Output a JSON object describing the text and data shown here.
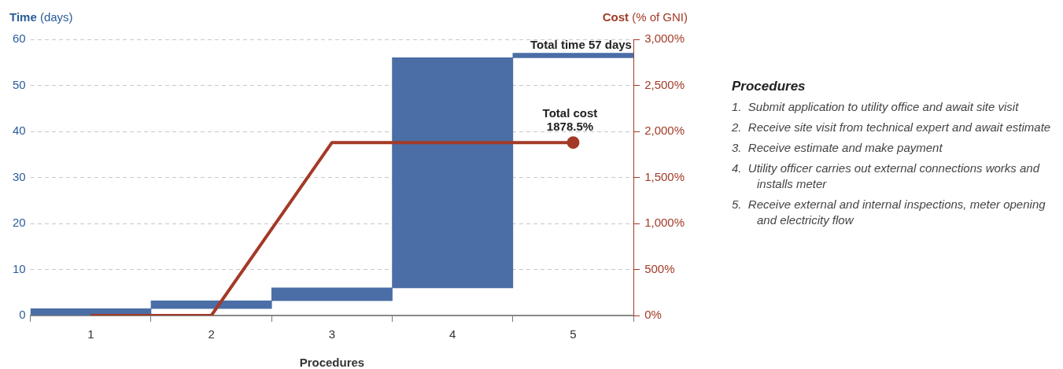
{
  "chart_data": [
    {
      "type": "bar",
      "xlabel": "Procedures",
      "ylabel": "Time (days)",
      "y2label": "Cost (% of GNI)",
      "categories": [
        "1",
        "2",
        "3",
        "4",
        "5"
      ],
      "series": [
        {
          "type": "bar",
          "color": "#4a6ea5",
          "values": [
            1.5,
            1.7,
            2.8,
            50,
            1
          ],
          "base": [
            0,
            1.5,
            3.2,
            6,
            56
          ]
        },
        {
          "type": "line",
          "axis": "y2",
          "color": "#a33a27",
          "values": [
            0,
            0,
            1878.5,
            1878.5,
            1878.5
          ]
        }
      ],
      "ylim": [
        0,
        60
      ],
      "yticks": [
        0,
        10,
        20,
        30,
        40,
        50,
        60
      ],
      "y2lim": [
        0,
        3000
      ],
      "y2ticks": [
        {
          "value": 0,
          "label": "0%"
        },
        {
          "value": 500,
          "label": "500%"
        },
        {
          "value": 1000,
          "label": "1,000%"
        },
        {
          "value": 1500,
          "label": "1,500%"
        },
        {
          "value": 2000,
          "label": "2,000%"
        },
        {
          "value": 2500,
          "label": "2,500%"
        },
        {
          "value": 3000,
          "label": "3,000%"
        }
      ],
      "grid": "y",
      "legend": false,
      "line_style": "solid",
      "annotations": [
        {
          "text": "Total time 57 days",
          "x": "5",
          "y": 57
        },
        "Total cost\n1878.5%"
      ]
    },
    {
      "type": "other",
      "title": "Procedures",
      "annotations": [
        "1.\tSubmit application to utility office and await site visit",
        "2.\tReceive site visit from technical expert and await estimate",
        "3.\tReceive estimate and make payment",
        "4.\tUtility officer carries out external connections works and installs meter",
        "5.\tReceive external and internal inspections, meter opening and electricity flow"
      ]
    }
  ]
}
